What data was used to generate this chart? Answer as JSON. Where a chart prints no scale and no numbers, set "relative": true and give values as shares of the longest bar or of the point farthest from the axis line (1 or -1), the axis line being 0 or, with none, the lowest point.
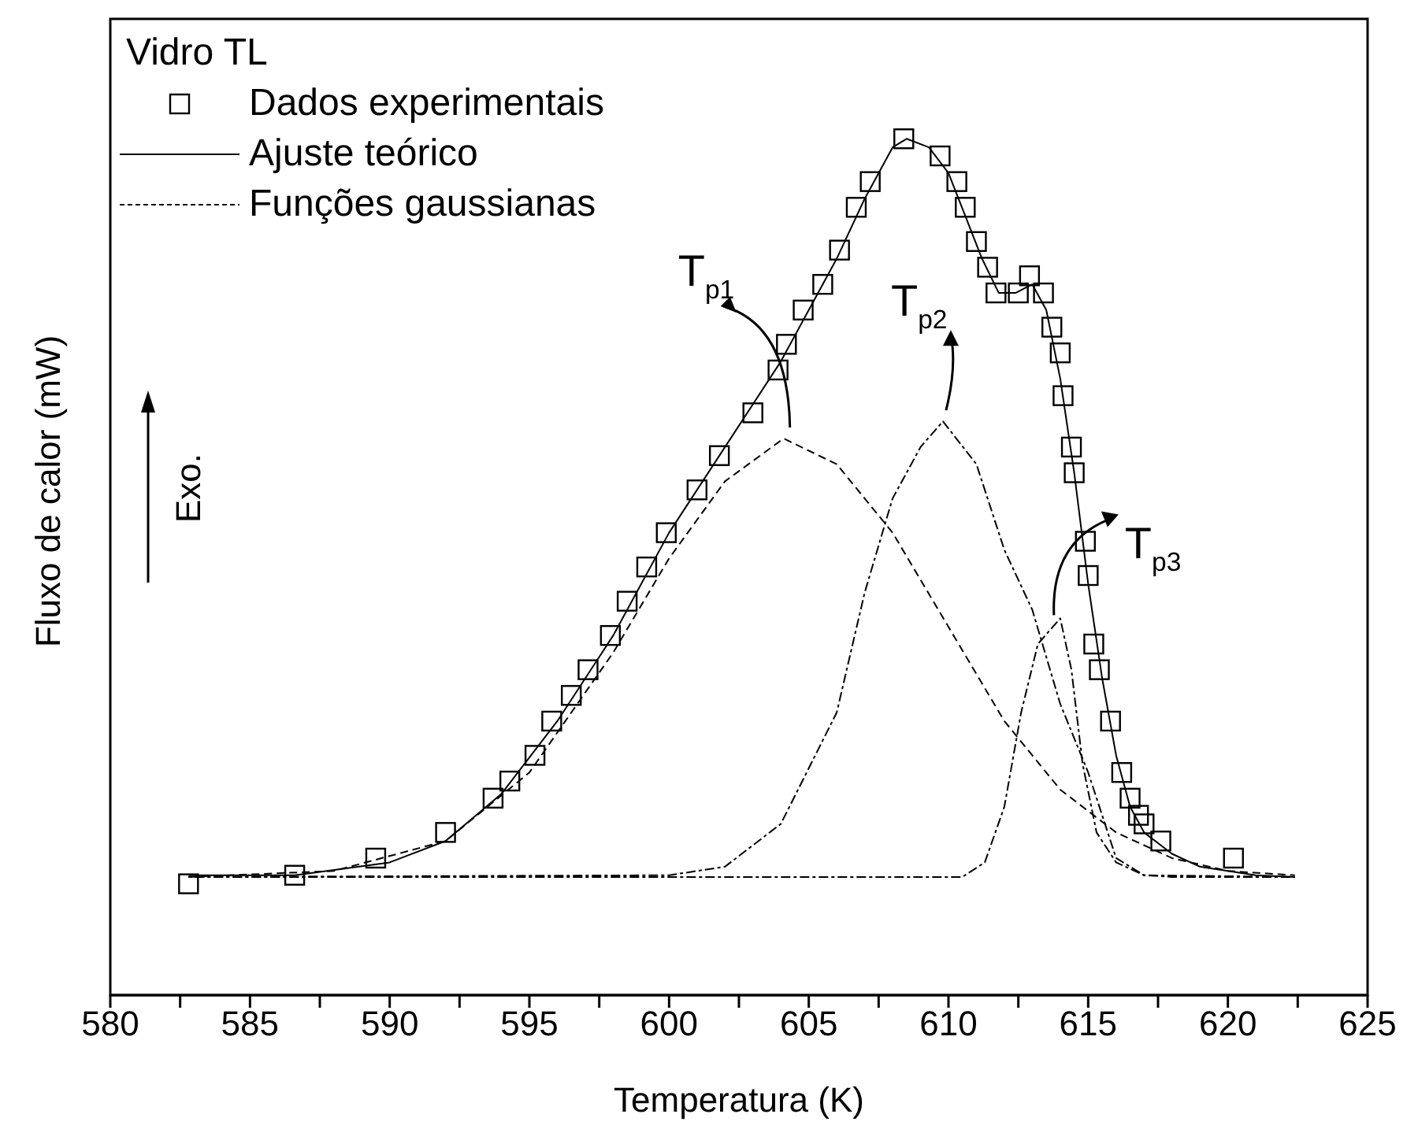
{
  "chart_data": {
    "type": "line",
    "relative": true,
    "xlabel": "Temperatura (K)",
    "ylabel": "Fluxo de calor (mW)",
    "legend_title": "Vidro TL",
    "legend": "top left",
    "grid": false,
    "xlim": [
      580,
      625
    ],
    "xticks": [
      580,
      {
        "value": 582.5,
        "label": null
      },
      585,
      {
        "value": 587.5,
        "label": null
      },
      590,
      {
        "value": 592.5,
        "label": null
      },
      595,
      {
        "value": 597.5,
        "label": null
      },
      600,
      {
        "value": 602.5,
        "label": null
      },
      605,
      {
        "value": 607.5,
        "label": null
      },
      610,
      {
        "value": 612.5,
        "label": null
      },
      615,
      {
        "value": 617.5,
        "label": null
      },
      620,
      {
        "value": 622.5,
        "label": null
      },
      625
    ],
    "series": [
      {
        "name": "Dados experimentais",
        "type": "scatter",
        "marker": "square",
        "color": "#000000",
        "x": [
          582.8,
          586.6,
          589.5,
          592.0,
          593.7,
          594.3,
          595.2,
          595.8,
          596.5,
          597.1,
          597.9,
          598.5,
          599.2,
          599.9,
          601.0,
          601.8,
          603.0,
          603.9,
          604.2,
          604.8,
          605.5,
          606.1,
          606.7,
          607.2,
          608.4,
          609.7,
          610.3,
          610.6,
          611.0,
          611.4,
          611.7,
          612.5,
          612.9,
          613.4,
          613.7,
          614.0,
          614.1,
          614.4,
          614.5,
          614.9,
          615.0,
          615.2,
          615.4,
          615.8,
          616.2,
          616.5,
          616.8,
          617.0,
          617.6,
          620.2
        ],
        "values": [
          0.13,
          0.14,
          0.16,
          0.19,
          0.23,
          0.25,
          0.28,
          0.32,
          0.35,
          0.38,
          0.42,
          0.46,
          0.5,
          0.54,
          0.59,
          0.63,
          0.68,
          0.73,
          0.76,
          0.8,
          0.83,
          0.87,
          0.92,
          0.95,
          1.0,
          0.98,
          0.95,
          0.92,
          0.88,
          0.85,
          0.82,
          0.82,
          0.84,
          0.82,
          0.78,
          0.75,
          0.7,
          0.64,
          0.61,
          0.53,
          0.49,
          0.41,
          0.38,
          0.32,
          0.26,
          0.23,
          0.21,
          0.2,
          0.18,
          0.16
        ]
      },
      {
        "name": "Ajuste teórico",
        "marker": "none",
        "line_style": "solid",
        "color": "#000000",
        "x": [
          582.8,
          586.6,
          590,
          592,
          594,
          596,
          598,
          600,
          602,
          604,
          606,
          607,
          608,
          608.5,
          609.3,
          610,
          610.6,
          611.2,
          611.8,
          612.4,
          613,
          613.5,
          614,
          614.5,
          615,
          615.5,
          616,
          616.5,
          617,
          618,
          619,
          620,
          621,
          622.4
        ],
        "values": [
          0.14,
          0.14,
          0.155,
          0.18,
          0.235,
          0.32,
          0.42,
          0.54,
          0.64,
          0.74,
          0.86,
          0.93,
          0.99,
          1.0,
          0.99,
          0.96,
          0.91,
          0.86,
          0.82,
          0.82,
          0.83,
          0.8,
          0.72,
          0.61,
          0.48,
          0.37,
          0.28,
          0.22,
          0.19,
          0.165,
          0.15,
          0.145,
          0.14,
          0.138
        ]
      },
      {
        "name": "Funções gaussianas",
        "marker": "none",
        "line_style": "dashed",
        "color": "#000000",
        "x": [
          582.8,
          588,
          592,
          595,
          598,
          600,
          602,
          604.1,
          606,
          608,
          610,
          612,
          614,
          616,
          618,
          620,
          622.4
        ],
        "values": [
          0.138,
          0.145,
          0.18,
          0.26,
          0.4,
          0.51,
          0.6,
          0.65,
          0.62,
          0.54,
          0.43,
          0.32,
          0.24,
          0.19,
          0.16,
          0.145,
          0.14
        ]
      },
      {
        "marker": "none",
        "line_style": "dotted",
        "color": "#000000",
        "x": [
          582.8,
          600,
          602,
          604,
          606,
          607,
          608,
          609,
          609.8,
          611,
          612,
          613,
          614,
          615,
          616,
          617,
          618,
          622.4
        ],
        "values": [
          0.138,
          0.14,
          0.15,
          0.2,
          0.33,
          0.47,
          0.58,
          0.64,
          0.67,
          0.62,
          0.52,
          0.45,
          0.34,
          0.26,
          0.16,
          0.14,
          0.138,
          0.138
        ]
      },
      {
        "marker": "none",
        "line_style": "dotted",
        "color": "#000000",
        "x": [
          582.8,
          610.5,
          611.3,
          612,
          612.6,
          613.2,
          614,
          614.4,
          614.8,
          615.3,
          616,
          617,
          622.4
        ],
        "values": [
          0.138,
          0.138,
          0.155,
          0.22,
          0.33,
          0.41,
          0.44,
          0.38,
          0.27,
          0.19,
          0.155,
          0.14,
          0.138
        ]
      }
    ],
    "annotations": [
      {
        "text": "T$_{p1}$",
        "x": 604.1,
        "y": 0.65
      },
      {
        "text": "T$_{p2}$",
        "x": 609.8,
        "y": 0.67
      },
      {
        "text": "T$_{p3}$",
        "x": 614.0,
        "y": 0.44
      },
      "Exo."
    ]
  }
}
